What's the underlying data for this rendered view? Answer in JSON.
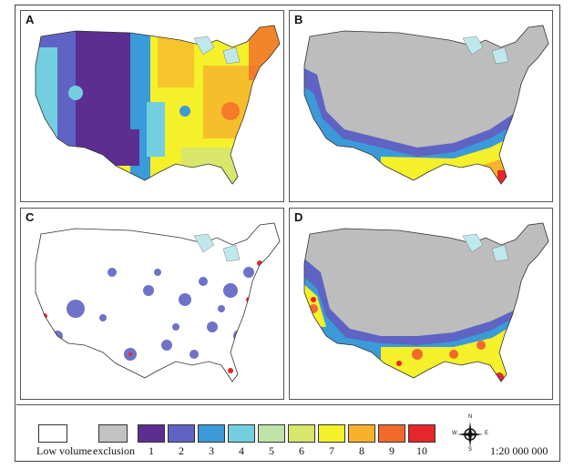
{
  "panels": [
    {
      "letter": "A"
    },
    {
      "letter": "B"
    },
    {
      "letter": "C"
    },
    {
      "letter": "D"
    }
  ],
  "legend": {
    "low_volume_label": "Low volume",
    "exclusion_label": "exclusion",
    "classes": [
      {
        "label": "1",
        "color": "#5c2e91"
      },
      {
        "label": "2",
        "color": "#5f63c4"
      },
      {
        "label": "3",
        "color": "#3b9ad8"
      },
      {
        "label": "4",
        "color": "#73cfe0"
      },
      {
        "label": "5",
        "color": "#bfe3a8"
      },
      {
        "label": "6",
        "color": "#d8e66a"
      },
      {
        "label": "7",
        "color": "#f4f02a"
      },
      {
        "label": "8",
        "color": "#f7b12c"
      },
      {
        "label": "9",
        "color": "#f16a2b"
      },
      {
        "label": "10",
        "color": "#e6262b"
      }
    ],
    "low_volume_color": "#ffffff",
    "exclusion_color": "#c2c2c2",
    "scale": "1:20 000 000",
    "compass": {
      "n": "N",
      "s": "S",
      "e": "E",
      "w": "W"
    }
  },
  "colors": {
    "water": "#bfe8ec",
    "exclusion": "#bdbdbd",
    "outline": "#333333"
  }
}
